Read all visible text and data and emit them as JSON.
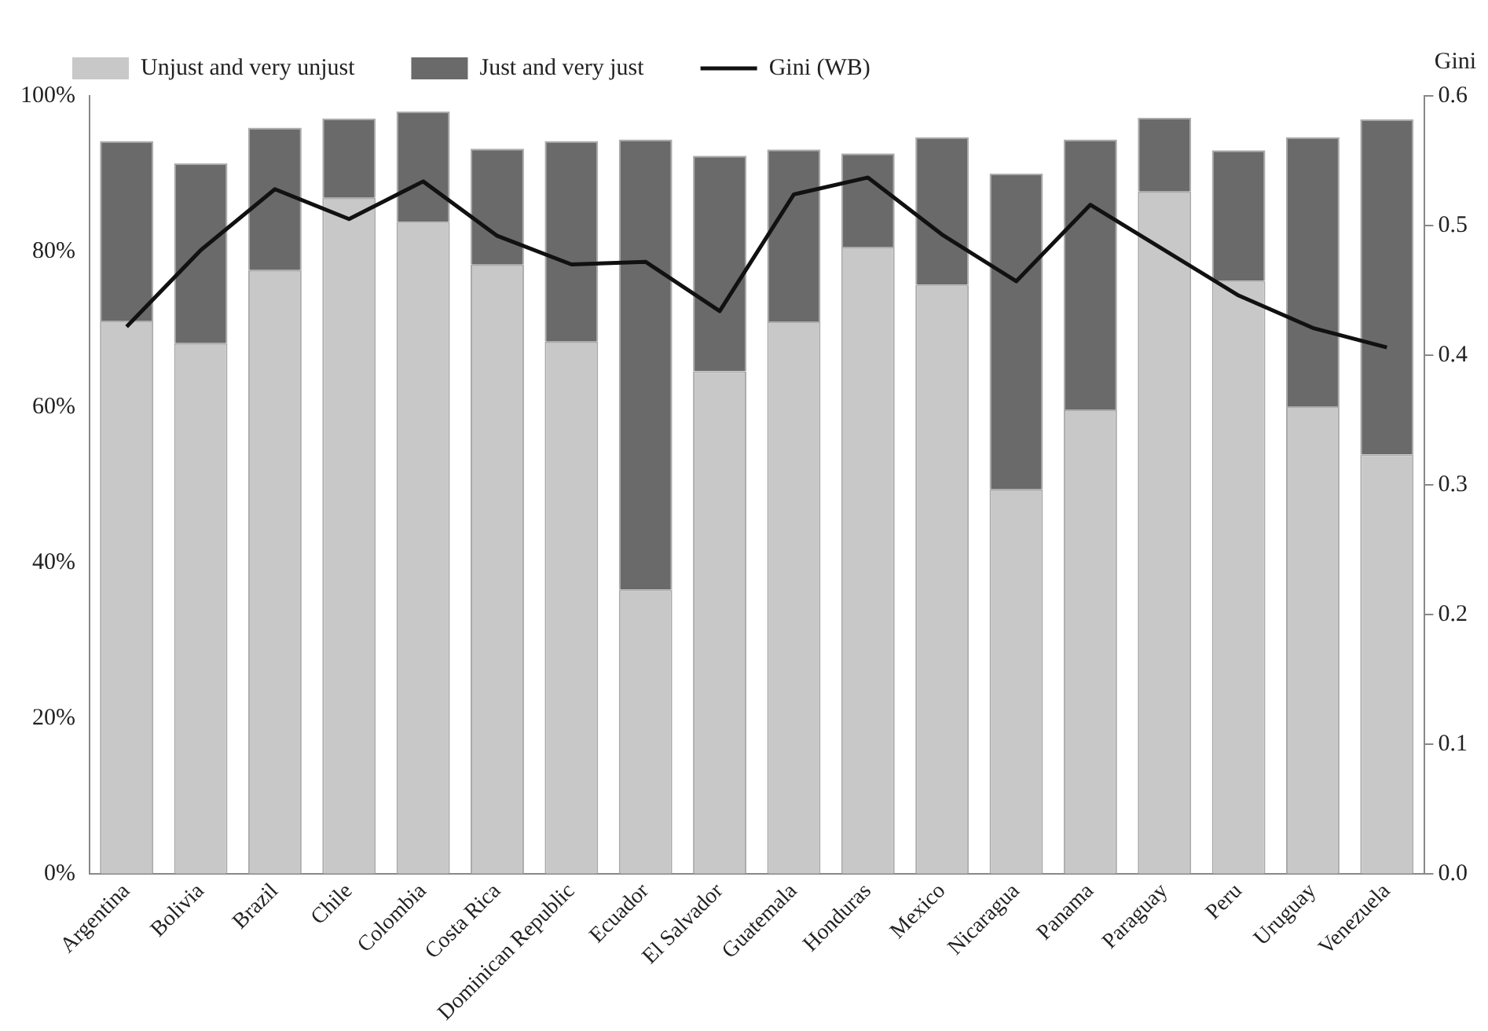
{
  "chart_data": {
    "type": "bar",
    "stacked": true,
    "categories": [
      "Argentina",
      "Bolivia",
      "Brazil",
      "Chile",
      "Colombia",
      "Costa Rica",
      "Dominican Republic",
      "Ecuador",
      "El Salvador",
      "Guatemala",
      "Honduras",
      "Mexico",
      "Nicaragua",
      "Panama",
      "Paraguay",
      "Peru",
      "Uruguay",
      "Venezuela"
    ],
    "series": [
      {
        "name": "Unjust and very unjust",
        "color": "#c8c8c8",
        "values": [
          71.1,
          68.2,
          77.6,
          86.9,
          83.8,
          78.3,
          68.4,
          36.5,
          64.6,
          71.0,
          80.6,
          75.7,
          49.4,
          59.7,
          87.7,
          76.2,
          60.1,
          53.9
        ]
      },
      {
        "name": "Just and very just",
        "color": "#6a6a6a",
        "values": [
          23.1,
          23.1,
          18.3,
          10.2,
          14.2,
          14.9,
          25.8,
          57.9,
          27.7,
          22.1,
          12.0,
          19.0,
          40.6,
          34.7,
          9.5,
          16.8,
          34.6,
          43.1
        ]
      },
      {
        "name": "Gini (WB)",
        "type": "line",
        "axis": "y2",
        "color": "#111111",
        "values": [
          0.422,
          0.481,
          0.528,
          0.505,
          0.534,
          0.492,
          0.47,
          0.472,
          0.434,
          0.524,
          0.537,
          0.493,
          0.457,
          0.516,
          0.481,
          0.446,
          0.421,
          0.406
        ]
      }
    ],
    "ylim": [
      0,
      100
    ],
    "yticks": [
      {
        "value": 0,
        "label": "0%"
      },
      {
        "value": 20,
        "label": "20%"
      },
      {
        "value": 40,
        "label": "40%"
      },
      {
        "value": 60,
        "label": "60%"
      },
      {
        "value": 80,
        "label": "80%"
      },
      {
        "value": 100,
        "label": "100%"
      }
    ],
    "y2lim": [
      0,
      0.6
    ],
    "y2ticks": [
      {
        "value": 0,
        "label": "0.0"
      },
      {
        "value": 0.1,
        "label": "0.1"
      },
      {
        "value": 0.2,
        "label": "0.2"
      },
      {
        "value": 0.3,
        "label": "0.3"
      },
      {
        "value": 0.4,
        "label": "0.4"
      },
      {
        "value": 0.5,
        "label": "0.5"
      },
      {
        "value": 0.6,
        "label": "0.6"
      }
    ],
    "y2label": "Gini",
    "legend": "top",
    "grid": false,
    "marker": "none"
  }
}
